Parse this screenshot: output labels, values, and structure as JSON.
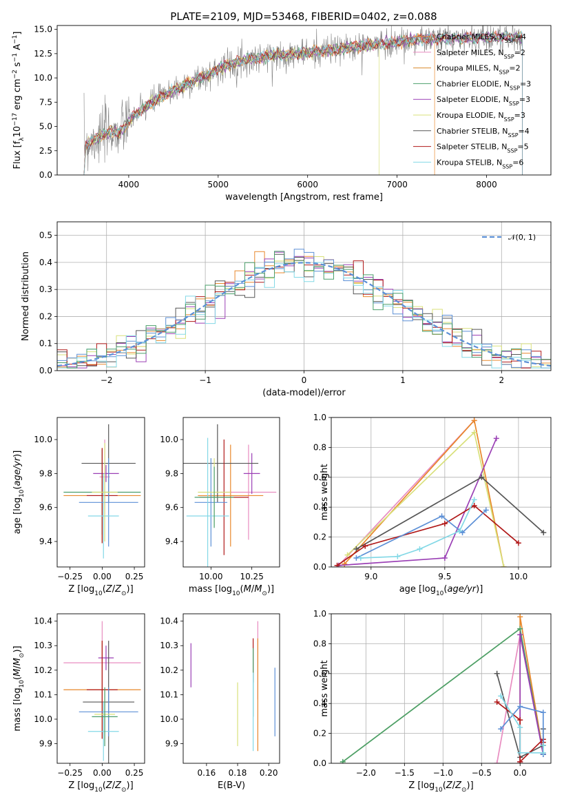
{
  "title": "PLATE=2109, MJD=53468, FIBERID=0402, z=0.088",
  "series_colors": [
    "#e8872a",
    "#e88cc0",
    "#d98a2c",
    "#4a9e6a",
    "#9a3fb5",
    "#d8e07a",
    "#555555",
    "#b01818",
    "#82d8e6"
  ],
  "chart_data": [
    {
      "type": "line",
      "xlabel": "wavelength [Angstrom, rest frame]",
      "ylabel": "Flux [f_λ 10^-17 erg cm^-2 s^-1 A^-1]",
      "xlim": [
        3200,
        8720
      ],
      "ylim": [
        0,
        15.4
      ],
      "xticks": [
        "4000",
        "5000",
        "6000",
        "7000",
        "8000"
      ],
      "yticks": [
        "0.0",
        "2.5",
        "5.0",
        "7.5",
        "10.0",
        "12.5",
        "15.0"
      ],
      "legend_position": "upper right",
      "legend": [
        {
          "label": "Chabrier MILES, N",
          "sub": "SSP",
          "tail": "=4",
          "color": "#e8872a"
        },
        {
          "label": "Salpeter MILES, N",
          "sub": "SSP",
          "tail": "=2",
          "color": "#e88cc0"
        },
        {
          "label": "Kroupa MILES, N",
          "sub": "SSP",
          "tail": "=2",
          "color": "#d98a2c"
        },
        {
          "label": "Chabrier ELODIE, N",
          "sub": "SSP",
          "tail": "=3",
          "color": "#4a9e6a"
        },
        {
          "label": "Salpeter ELODIE, N",
          "sub": "SSP",
          "tail": "=3",
          "color": "#9a3fb5"
        },
        {
          "label": "Kroupa ELODIE, N",
          "sub": "SSP",
          "tail": "=3",
          "color": "#d8e07a"
        },
        {
          "label": "Chabrier STELIB, N",
          "sub": "SSP",
          "tail": "=4",
          "color": "#555555"
        },
        {
          "label": "Salpeter STELIB, N",
          "sub": "SSP",
          "tail": "=5",
          "color": "#b01818"
        },
        {
          "label": "Kroupa STELIB, N",
          "sub": "SSP",
          "tail": "=6",
          "color": "#82d8e6"
        }
      ],
      "spectrum_trend": {
        "x": [
          3500,
          3600,
          3700,
          3800,
          3900,
          4000,
          4100,
          4200,
          4300,
          4400,
          4500,
          4600,
          4700,
          4800,
          4900,
          5000,
          5200,
          5400,
          5600,
          5800,
          6000,
          6200,
          6400,
          6600,
          6800,
          7000,
          7200,
          7400,
          7600,
          7800,
          8000,
          8200,
          8400
        ],
        "y": [
          3.0,
          3.6,
          4.0,
          4.5,
          4.3,
          5.6,
          6.4,
          7.1,
          7.7,
          8.2,
          8.7,
          9.1,
          9.6,
          10.0,
          10.3,
          11.0,
          11.6,
          12.0,
          12.3,
          12.4,
          12.6,
          12.8,
          13.0,
          13.3,
          13.5,
          13.7,
          13.9,
          14.0,
          14.1,
          14.1,
          14.2,
          14.2,
          14.1
        ]
      }
    },
    {
      "type": "histogram",
      "xlabel": "(data-model)/error",
      "ylabel": "Normed distribution",
      "xlim": [
        -2.5,
        2.5
      ],
      "ylim": [
        0,
        0.55
      ],
      "xticks": [
        "−2",
        "−1",
        "0",
        "1",
        "2"
      ],
      "yticks": [
        "0.0",
        "0.1",
        "0.2",
        "0.3",
        "0.4",
        "0.5"
      ],
      "grid": true,
      "legend": [
        {
          "label": "𝒩(0, 1)",
          "style": "dashed",
          "color": "#5b8fd6"
        }
      ],
      "bin_width": 0.1,
      "reference_curve": "gaussian mean 0, sigma 1"
    },
    {
      "type": "errorbar",
      "xlabel": "Z [log10(Z/Z⊙)]",
      "ylabel": "age [log10(age/yr)]",
      "xlim": [
        -0.35,
        0.33
      ],
      "ylim": [
        9.25,
        10.13
      ],
      "xticks": [
        "−0.25",
        "0.00",
        "0.25"
      ],
      "yticks": [
        "9.4",
        "9.6",
        "9.8",
        "10.0"
      ],
      "points": [
        {
          "x": 0.0,
          "y": 9.67,
          "xerr": 0.3,
          "yerr": 0.28,
          "color": "#e8872a"
        },
        {
          "x": 0.02,
          "y": 9.78,
          "xerr": 0.04,
          "yerr": 0.22,
          "color": "#e88cc0"
        },
        {
          "x": 0.0,
          "y": 9.69,
          "xerr": 0.3,
          "yerr": 0.25,
          "color": "#4a9e6a"
        },
        {
          "x": 0.03,
          "y": 9.8,
          "xerr": 0.1,
          "yerr": 0.05,
          "color": "#9a3fb5"
        },
        {
          "x": 0.05,
          "y": 9.86,
          "xerr": 0.21,
          "yerr": 0.23,
          "color": "#555555"
        },
        {
          "x": 0.0,
          "y": 9.67,
          "xerr": 0.12,
          "yerr": 0.28,
          "color": "#b01818"
        },
        {
          "x": 0.05,
          "y": 9.63,
          "xerr": 0.23,
          "yerr": 0.26,
          "color": "#5b8fd6"
        },
        {
          "x": 0.01,
          "y": 9.55,
          "xerr": 0.12,
          "yerr": 0.25,
          "color": "#82d8e6"
        },
        {
          "x": 0.02,
          "y": 9.69,
          "xerr": 0.1,
          "yerr": 0.29,
          "color": "#d8e07a"
        }
      ]
    },
    {
      "type": "errorbar",
      "xlabel": "mass [log10(M/M⊙)]",
      "ylabel": "",
      "xlim": [
        9.83,
        10.42
      ],
      "ylim": [
        9.25,
        10.13
      ],
      "xticks": [
        "10.00",
        "10.25"
      ],
      "yticks": [
        "9.4",
        "9.6",
        "9.8",
        "10.0"
      ],
      "points": [
        {
          "x": 10.23,
          "y": 9.69,
          "xerr": 0.17,
          "yerr": 0.28,
          "color": "#e88cc0"
        },
        {
          "x": 10.12,
          "y": 9.67,
          "xerr": 0.2,
          "yerr": 0.3,
          "color": "#e8872a"
        },
        {
          "x": 10.25,
          "y": 9.8,
          "xerr": 0.05,
          "yerr": 0.12,
          "color": "#9a3fb5"
        },
        {
          "x": 10.04,
          "y": 9.86,
          "xerr": 0.25,
          "yerr": 0.23,
          "color": "#555555"
        },
        {
          "x": 10.08,
          "y": 9.66,
          "xerr": 0.15,
          "yerr": 0.34,
          "color": "#b01818"
        },
        {
          "x": 10.0,
          "y": 9.63,
          "xerr": 0.1,
          "yerr": 0.26,
          "color": "#5b8fd6"
        },
        {
          "x": 9.98,
          "y": 9.55,
          "xerr": 0.13,
          "yerr": 0.46,
          "color": "#82d8e6"
        },
        {
          "x": 10.02,
          "y": 9.69,
          "xerr": 0.1,
          "yerr": 0.2,
          "color": "#d8e07a"
        },
        {
          "x": 10.02,
          "y": 9.66,
          "xerr": 0.12,
          "yerr": 0.18,
          "color": "#4a9e6a"
        }
      ]
    },
    {
      "type": "line",
      "xlabel": "age [log10(age/yr)]",
      "ylabel": "mass weight",
      "xlim": [
        8.73,
        10.22
      ],
      "ylim": [
        0,
        1.0
      ],
      "xticks": [
        "9.0",
        "9.5",
        "10.0"
      ],
      "yticks": [
        "0.0",
        "0.2",
        "0.4",
        "0.6",
        "0.8",
        "1.0"
      ],
      "grid": true,
      "series": [
        {
          "color": "#e88cc0",
          "x": [
            8.78,
            9.7
          ],
          "y": [
            0.01,
            0.98
          ]
        },
        {
          "color": "#e8872a",
          "x": [
            8.82,
            9.7,
            9.9
          ],
          "y": [
            0.02,
            0.98,
            0.0
          ]
        },
        {
          "color": "#d8e07a",
          "x": [
            8.84,
            9.7,
            9.9
          ],
          "y": [
            0.08,
            0.9,
            0.0
          ]
        },
        {
          "color": "#9a3fb5",
          "x": [
            8.78,
            9.5,
            9.85
          ],
          "y": [
            0.01,
            0.06,
            0.86
          ]
        },
        {
          "color": "#555555",
          "x": [
            8.9,
            9.75,
            10.17
          ],
          "y": [
            0.12,
            0.6,
            0.23
          ]
        },
        {
          "color": "#b01818",
          "x": [
            8.77,
            8.96,
            9.5,
            9.7,
            10.0
          ],
          "y": [
            0.01,
            0.14,
            0.29,
            0.41,
            0.16
          ]
        },
        {
          "color": "#5b8fd6",
          "x": [
            8.9,
            9.48,
            9.62,
            9.78
          ],
          "y": [
            0.06,
            0.34,
            0.23,
            0.38
          ]
        },
        {
          "color": "#82d8e6",
          "x": [
            8.93,
            9.18,
            9.33,
            9.6,
            9.7
          ],
          "y": [
            0.06,
            0.07,
            0.12,
            0.24,
            0.45
          ]
        }
      ]
    },
    {
      "type": "errorbar",
      "xlabel": "Z [log10(Z/Z⊙)]",
      "ylabel": "mass [log10(M/M⊙)]",
      "xlim": [
        -0.35,
        0.33
      ],
      "ylim": [
        9.82,
        10.43
      ],
      "xticks": [
        "−0.25",
        "0.00",
        "0.25"
      ],
      "yticks": [
        "9.9",
        "10.0",
        "10.1",
        "10.2",
        "10.3",
        "10.4"
      ],
      "points": [
        {
          "x": 0.0,
          "y": 10.23,
          "xerr": 0.3,
          "yerr": 0.17,
          "color": "#e88cc0"
        },
        {
          "x": 0.0,
          "y": 10.12,
          "xerr": 0.3,
          "yerr": 0.2,
          "color": "#e8872a"
        },
        {
          "x": 0.03,
          "y": 10.25,
          "xerr": 0.06,
          "yerr": 0.05,
          "color": "#9a3fb5"
        },
        {
          "x": 0.05,
          "y": 10.07,
          "xerr": 0.2,
          "yerr": 0.25,
          "color": "#555555"
        },
        {
          "x": 0.0,
          "y": 10.12,
          "xerr": 0.12,
          "yerr": 0.2,
          "color": "#b01818"
        },
        {
          "x": 0.05,
          "y": 10.03,
          "xerr": 0.23,
          "yerr": 0.1,
          "color": "#5b8fd6"
        },
        {
          "x": 0.01,
          "y": 9.95,
          "xerr": 0.12,
          "yerr": 0.12,
          "color": "#82d8e6"
        },
        {
          "x": 0.02,
          "y": 10.02,
          "xerr": 0.08,
          "yerr": 0.1,
          "color": "#d8e07a"
        },
        {
          "x": 0.02,
          "y": 10.01,
          "xerr": 0.1,
          "yerr": 0.12,
          "color": "#4a9e6a"
        }
      ]
    },
    {
      "type": "errorbar",
      "xlabel": "E(B-V)",
      "ylabel": "",
      "xlim": [
        0.145,
        0.207
      ],
      "ylim": [
        9.82,
        10.43
      ],
      "xticks": [
        "0.16",
        "0.18",
        "0.20"
      ],
      "yticks": [
        "9.9",
        "10.0",
        "10.1",
        "10.2",
        "10.3",
        "10.4"
      ],
      "points": [
        {
          "x": 0.15,
          "y": 10.22,
          "yerr": 0.09,
          "color": "#9a3fb5"
        },
        {
          "x": 0.18,
          "y": 10.02,
          "yerr": 0.13,
          "color": "#d8e07a"
        },
        {
          "x": 0.19,
          "y": 10.24,
          "yerr": 0.09,
          "color": "#b01818"
        },
        {
          "x": 0.19,
          "y": 10.15,
          "yerr": 0.14,
          "color": "#4a9e6a"
        },
        {
          "x": 0.19,
          "y": 10.03,
          "yerr": 0.16,
          "color": "#82d8e6"
        },
        {
          "x": 0.193,
          "y": 10.24,
          "yerr": 0.16,
          "color": "#e88cc0"
        },
        {
          "x": 0.193,
          "y": 10.1,
          "yerr": 0.23,
          "color": "#e8872a"
        },
        {
          "x": 0.204,
          "y": 10.07,
          "yerr": 0.14,
          "color": "#5b8fd6"
        }
      ]
    },
    {
      "type": "line",
      "xlabel": "Z [log10(Z/Z⊙)]",
      "ylabel": "mass weight",
      "xlim": [
        -2.45,
        0.4
      ],
      "ylim": [
        0,
        1.0
      ],
      "xticks": [
        "−2.0",
        "−1.5",
        "−1.0",
        "−0.5",
        "0.0"
      ],
      "yticks": [
        "0.0",
        "0.2",
        "0.4",
        "0.6",
        "0.8",
        "1.0"
      ],
      "grid": true,
      "series": [
        {
          "color": "#d8e07a",
          "x": [
            -2.3,
            0.0,
            0.3
          ],
          "y": [
            0.01,
            0.9,
            0.06
          ]
        },
        {
          "color": "#e8872a",
          "x": [
            0.0,
            0.0,
            0.3
          ],
          "y": [
            0.01,
            0.98,
            0.07
          ]
        },
        {
          "color": "#e88cc0",
          "x": [
            -0.3,
            0.0,
            0.3
          ],
          "y": [
            0.0,
            0.86,
            0.06
          ]
        },
        {
          "color": "#4a9e6a",
          "x": [
            -2.3,
            0.0,
            0.3
          ],
          "y": [
            0.01,
            0.9,
            0.06
          ]
        },
        {
          "color": "#9a3fb5",
          "x": [
            -0.0,
            0.0,
            0.3
          ],
          "y": [
            0.01,
            0.86,
            0.06
          ]
        },
        {
          "color": "#555555",
          "x": [
            -0.3,
            0.0,
            0.3,
            0.3
          ],
          "y": [
            0.6,
            0.04,
            0.12,
            0.23
          ]
        },
        {
          "color": "#b01818",
          "x": [
            -0.3,
            0.0,
            0.0,
            0.3,
            0.3
          ],
          "y": [
            0.41,
            0.29,
            0.01,
            0.16,
            0.14
          ]
        },
        {
          "color": "#5b8fd6",
          "x": [
            -0.25,
            0.0,
            0.3,
            0.3
          ],
          "y": [
            0.23,
            0.38,
            0.34,
            0.06
          ]
        },
        {
          "color": "#82d8e6",
          "x": [
            -0.25,
            0.0,
            0.0,
            0.3,
            0.3
          ],
          "y": [
            0.45,
            0.24,
            0.07,
            0.07,
            0.12
          ]
        }
      ]
    }
  ]
}
